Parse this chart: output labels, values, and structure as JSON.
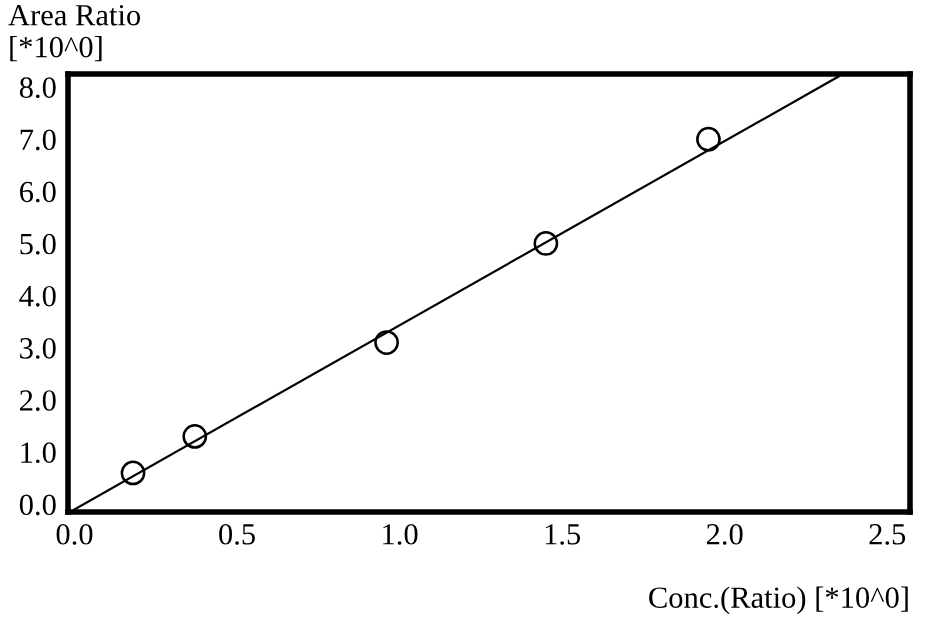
{
  "chart_data": {
    "type": "scatter",
    "xlabel": "Conc.(Ratio) [*10^0]",
    "ylabel": "Area Ratio\n[*10^0]",
    "series": [
      {
        "color": "#000000",
        "marker": "circle",
        "x": [
          0.18,
          0.37,
          0.96,
          1.45,
          1.95
        ],
        "values": [
          0.6,
          1.3,
          3.1,
          5.0,
          7.0
        ]
      },
      {
        "type": "line",
        "color": "#000000",
        "line_style": "solid",
        "x": [
          0.0,
          2.35
        ],
        "values": [
          -0.1,
          8.2
        ]
      }
    ],
    "xlim": [
      -0.02,
      2.57
    ],
    "ylim": [
      -0.15,
      8.25
    ],
    "xticks": [
      {
        "value": 0,
        "label": "0.0"
      },
      0.5,
      {
        "value": 1,
        "label": "1.0"
      },
      1.5,
      {
        "value": 2,
        "label": "2.0"
      },
      2.5
    ],
    "yticks": [
      {
        "value": 0,
        "label": "0.0"
      },
      {
        "value": 1,
        "label": "1.0"
      },
      {
        "value": 2,
        "label": "2.0"
      },
      {
        "value": 3,
        "label": "3.0"
      },
      {
        "value": 4,
        "label": "4.0"
      },
      {
        "value": 5,
        "label": "5.0"
      },
      {
        "value": 6,
        "label": "6.0"
      },
      {
        "value": 7,
        "label": "7.0"
      },
      {
        "value": 8,
        "label": "8.0"
      }
    ],
    "grid": false,
    "legend": false
  }
}
